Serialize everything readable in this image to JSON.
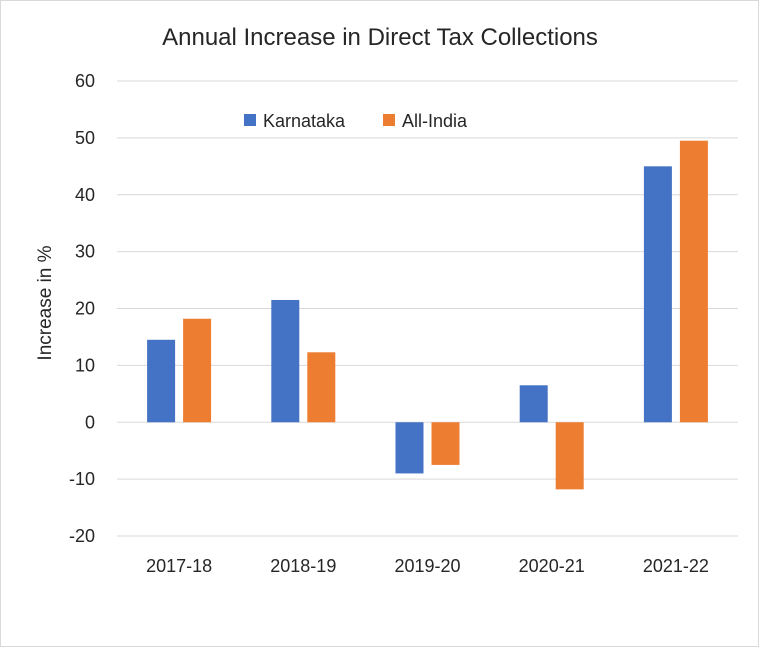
{
  "chart_data": {
    "type": "bar",
    "title": "Annual Increase in Direct Tax Collections",
    "xlabel": "",
    "ylabel": "Increase  in %",
    "categories": [
      "2017-18",
      "2018-19",
      "2019-20",
      "2020-21",
      "2021-22"
    ],
    "series": [
      {
        "name": "Karnataka",
        "color": "#4472c4",
        "values": [
          14.5,
          21.5,
          -9.0,
          6.5,
          45.0
        ]
      },
      {
        "name": "All-India",
        "color": "#ed7d31",
        "values": [
          18.2,
          12.3,
          -7.5,
          -11.8,
          49.5
        ]
      }
    ],
    "ylim": [
      -20,
      60
    ],
    "yticks": [
      "-20",
      "-10",
      "0",
      "10",
      "20",
      "30",
      "40",
      "50",
      "60"
    ],
    "ytick_values": [
      -20,
      -10,
      0,
      10,
      20,
      30,
      40,
      50,
      60
    ],
    "grid": true,
    "legend_position": "top"
  }
}
